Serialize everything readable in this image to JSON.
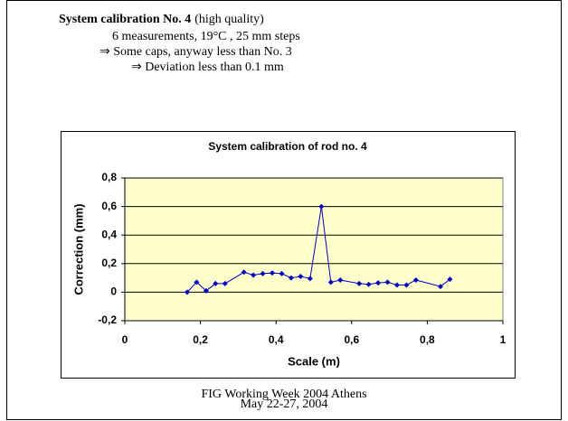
{
  "slide": {
    "heading_bold": "System calibration No. 4",
    "heading_rest": "(high quality)",
    "lines": [
      "6 measurements, 19°C , 25 mm steps",
      "⇒ Some caps, anyway less than No. 3",
      "⇒ Deviation less than 0.1 mm"
    ],
    "footer": [
      "FIG Working Week 2004 Athens",
      "May 22-27, 2004"
    ]
  },
  "chart_data": {
    "type": "line",
    "title": "System calibration of rod no. 4",
    "x_label": "Scale (m)",
    "y_label": "Correction (mm)",
    "x": [
      0.165,
      0.19,
      0.215,
      0.24,
      0.265,
      0.315,
      0.34,
      0.365,
      0.39,
      0.415,
      0.44,
      0.465,
      0.49,
      0.52,
      0.545,
      0.57,
      0.62,
      0.645,
      0.67,
      0.695,
      0.72,
      0.745,
      0.77,
      0.835,
      0.86
    ],
    "series": [
      {
        "color": "#0000cc",
        "values": [
          0.0,
          0.07,
          0.01,
          0.06,
          0.06,
          0.14,
          0.12,
          0.13,
          0.135,
          0.13,
          0.1,
          0.11,
          0.095,
          0.6,
          0.07,
          0.085,
          0.06,
          0.055,
          0.065,
          0.07,
          0.05,
          0.05,
          0.085,
          0.04,
          0.09
        ]
      }
    ],
    "xlim": [
      0,
      1
    ],
    "xticks": [
      0,
      {
        "value": 0.2,
        "label": "0,2"
      },
      {
        "value": 0.4,
        "label": "0,4"
      },
      {
        "value": 0.6,
        "label": "0,6"
      },
      {
        "value": 0.8,
        "label": "0,8"
      },
      1
    ],
    "ylim": [
      -0.2,
      0.8
    ],
    "yticks": [
      {
        "value": -0.2,
        "label": "-0,2"
      },
      0,
      {
        "value": 0.2,
        "label": "0,2"
      },
      {
        "value": 0.4,
        "label": "0,4"
      },
      {
        "value": 0.6,
        "label": "0,6"
      },
      {
        "value": 0.8,
        "label": "0,8"
      }
    ],
    "grid": true,
    "plot_color": "#ffffcc"
  }
}
